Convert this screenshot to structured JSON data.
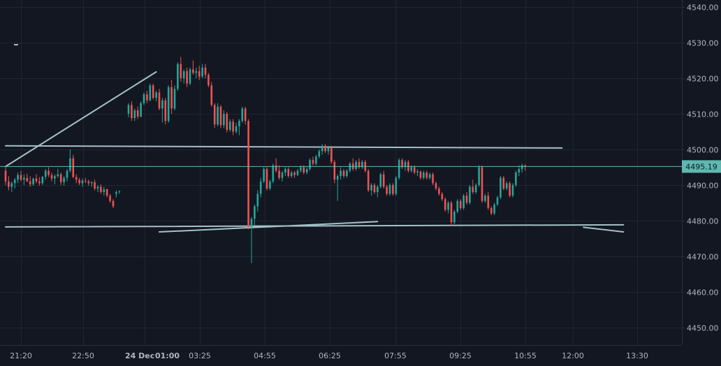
{
  "chart_data": {
    "type": "candlestick",
    "title": "",
    "xlabel": "",
    "ylabel": "",
    "ylim": [
      4445,
      4542
    ],
    "grid": true,
    "y_ticks": [
      4450,
      4460,
      4470,
      4480,
      4490,
      4500,
      4510,
      4520,
      4530,
      4540
    ],
    "y_tick_labels": [
      "4450.00",
      "4460.00",
      "4470.00",
      "4480.00",
      "4490.00",
      "4500.00",
      "4510.00",
      "4520.00",
      "4530.00",
      "4540.00"
    ],
    "x_tick_labels": [
      "21:20",
      "22:50",
      "24 Dec",
      "01:00",
      "03:25",
      "04:55",
      "06:25",
      "07:55",
      "09:25",
      "10:55",
      "12:00",
      "13:30"
    ],
    "last_price": 4495.19,
    "last_price_label": "4495.19",
    "colors": {
      "background": "#131722",
      "grid": "#1e2533",
      "up": "#26a69a",
      "down": "#ef5350",
      "drawing": "#a3c2c7",
      "text": "#b2b5be",
      "price_line": "#5fb8b0",
      "price_tag_bg": "#5fb8b0",
      "price_tag_text": "#0f1a1f"
    },
    "drawings": [
      {
        "kind": "trendline",
        "from": [
          0,
          4495.2
        ],
        "to": [
          49,
          4521.8
        ]
      },
      {
        "kind": "horizontal",
        "from": [
          0,
          4501.0
        ],
        "to": [
          181,
          4500.4
        ]
      },
      {
        "kind": "horizontal",
        "from": [
          0,
          4478.2
        ],
        "to": [
          201,
          4478.8
        ]
      },
      {
        "kind": "trendline",
        "from": [
          50,
          4476.8
        ],
        "to": [
          121,
          4479.7
        ]
      },
      {
        "kind": "trendline",
        "from": [
          188,
          4478.1
        ],
        "to": [
          201,
          4476.8
        ]
      }
    ],
    "series": [
      {
        "name": "",
        "ohlc": [
          [
            4494.0,
            4495.0,
            4490.0,
            4491.0
          ],
          [
            4491.0,
            4492.5,
            4488.5,
            4489.5
          ],
          [
            4489.5,
            4491.0,
            4488.0,
            4490.5
          ],
          [
            4490.5,
            4492.0,
            4489.0,
            4491.5
          ],
          [
            4491.5,
            4493.5,
            4490.5,
            4492.8
          ],
          [
            4492.8,
            4494.0,
            4491.0,
            4491.5
          ],
          [
            4491.5,
            4493.0,
            4490.0,
            4492.0
          ],
          [
            4492.0,
            4493.2,
            4490.8,
            4491.0
          ],
          [
            4491.0,
            4492.5,
            4489.5,
            4490.2
          ],
          [
            4490.2,
            4492.0,
            4489.8,
            4491.8
          ],
          [
            4491.8,
            4493.0,
            4490.5,
            4491.0
          ],
          [
            4491.0,
            4492.2,
            4489.8,
            4490.5
          ],
          [
            4490.5,
            4492.5,
            4490.0,
            4492.3
          ],
          [
            4492.3,
            4494.5,
            4491.5,
            4494.0
          ],
          [
            4494.0,
            4495.0,
            4492.2,
            4492.8
          ],
          [
            4492.8,
            4493.5,
            4491.0,
            4491.8
          ],
          [
            4491.8,
            4493.0,
            4490.2,
            4492.5
          ],
          [
            4492.5,
            4494.5,
            4492.0,
            4493.0
          ],
          [
            4493.0,
            4493.5,
            4490.0,
            4490.8
          ],
          [
            4490.8,
            4492.5,
            4489.8,
            4492.0
          ],
          [
            4492.0,
            4494.5,
            4491.0,
            4494.0
          ],
          [
            4494.0,
            4500.0,
            4493.5,
            4497.5
          ],
          [
            4497.5,
            4498.5,
            4492.0,
            4492.2
          ],
          [
            4492.2,
            4493.0,
            4490.5,
            4491.5
          ],
          [
            4491.5,
            4492.0,
            4490.0,
            4490.5
          ],
          [
            4490.5,
            4491.8,
            4489.5,
            4491.2
          ],
          [
            4491.2,
            4492.0,
            4490.5,
            4491.0
          ],
          [
            4491.0,
            4491.5,
            4489.8,
            4490.5
          ],
          [
            4490.5,
            4491.0,
            4489.5,
            4490.8
          ],
          [
            4490.8,
            4491.5,
            4488.5,
            4489.0
          ],
          [
            4489.0,
            4490.0,
            4488.0,
            4489.5
          ],
          [
            4489.5,
            4490.2,
            4487.5,
            4488.0
          ],
          [
            4488.0,
            4489.5,
            4487.0,
            4488.8
          ],
          [
            4488.8,
            4489.0,
            4486.5,
            4487.0
          ],
          [
            4487.0,
            4487.5,
            4485.0,
            4485.5
          ],
          [
            4485.5,
            4486.0,
            4483.5,
            4484.0
          ],
          [
            4487.5,
            4488.5,
            4486.5,
            4488.0
          ],
          [
            4488.0,
            4488.5,
            4487.5,
            4488.2
          ],
          null,
          null,
          [
            4510.0,
            4513.0,
            4509.0,
            4512.5
          ],
          [
            4512.5,
            4513.5,
            4508.0,
            4508.8
          ],
          [
            4508.8,
            4511.5,
            4508.0,
            4511.0
          ],
          [
            4511.0,
            4512.0,
            4508.5,
            4509.2
          ],
          [
            4509.2,
            4513.5,
            4509.0,
            4513.0
          ],
          [
            4513.0,
            4516.0,
            4512.5,
            4515.5
          ],
          [
            4515.5,
            4516.5,
            4513.0,
            4513.8
          ],
          [
            4513.8,
            4518.5,
            4513.5,
            4518.0
          ],
          [
            4518.0,
            4518.5,
            4514.0,
            4514.5
          ],
          [
            4514.5,
            4516.5,
            4513.5,
            4516.0
          ],
          [
            4516.0,
            4517.0,
            4511.0,
            4511.5
          ],
          [
            4511.5,
            4514.5,
            4507.5,
            4513.8
          ],
          [
            4513.8,
            4514.5,
            4507.0,
            4508.0
          ],
          [
            4508.0,
            4518.0,
            4507.5,
            4517.5
          ],
          [
            4517.5,
            4519.5,
            4510.0,
            4511.5
          ],
          [
            4511.5,
            4518.0,
            4511.0,
            4517.0
          ],
          [
            4517.0,
            4524.5,
            4516.5,
            4524.0
          ],
          [
            4524.0,
            4526.0,
            4519.0,
            4520.0
          ],
          [
            4520.0,
            4522.5,
            4518.5,
            4522.0
          ],
          [
            4522.0,
            4523.0,
            4517.5,
            4518.5
          ],
          [
            4518.5,
            4523.0,
            4518.0,
            4522.5
          ],
          [
            4522.5,
            4525.0,
            4521.0,
            4521.5
          ],
          [
            4521.5,
            4523.0,
            4520.0,
            4522.0
          ],
          [
            4522.0,
            4523.5,
            4519.5,
            4520.5
          ],
          [
            4520.5,
            4524.0,
            4520.0,
            4523.0
          ],
          [
            4523.0,
            4524.0,
            4520.0,
            4521.0
          ],
          [
            4521.0,
            4521.5,
            4517.5,
            4518.0
          ],
          [
            4518.0,
            4519.0,
            4512.0,
            4512.5
          ],
          [
            4512.5,
            4513.0,
            4506.0,
            4507.0
          ],
          [
            4507.0,
            4513.0,
            4506.5,
            4512.0
          ],
          [
            4512.0,
            4512.5,
            4506.0,
            4506.8
          ],
          [
            4506.8,
            4511.0,
            4506.0,
            4510.0
          ],
          [
            4510.0,
            4510.5,
            4504.8,
            4505.5
          ],
          [
            4505.5,
            4508.5,
            4505.0,
            4507.8
          ],
          [
            4507.8,
            4508.5,
            4504.0,
            4505.0
          ],
          [
            4505.0,
            4507.5,
            4504.5,
            4506.5
          ],
          [
            4506.5,
            4508.5,
            4504.0,
            4508.0
          ],
          [
            4508.0,
            4512.0,
            4507.5,
            4511.5
          ],
          [
            4511.5,
            4512.0,
            4507.0,
            4508.0
          ],
          [
            4508.0,
            4508.5,
            4477.5,
            4478.2
          ],
          [
            4478.2,
            4481.0,
            4468.0,
            4480.5
          ],
          [
            4480.5,
            4484.5,
            4478.5,
            4484.0
          ],
          [
            4484.0,
            4488.5,
            4482.5,
            4487.5
          ],
          [
            4487.5,
            4492.0,
            4486.5,
            4491.0
          ],
          [
            4491.0,
            4495.0,
            4490.5,
            4494.5
          ],
          [
            4494.5,
            4495.0,
            4488.5,
            4489.0
          ],
          [
            4489.0,
            4491.5,
            4488.5,
            4491.0
          ],
          [
            4491.0,
            4496.0,
            4490.5,
            4495.5
          ],
          [
            4495.5,
            4497.5,
            4493.5,
            4494.0
          ],
          [
            4494.0,
            4495.5,
            4491.5,
            4492.0
          ],
          [
            4492.0,
            4494.0,
            4491.0,
            4493.5
          ],
          [
            4493.5,
            4495.0,
            4492.5,
            4494.5
          ],
          [
            4494.5,
            4495.0,
            4492.0,
            4492.5
          ],
          [
            4492.5,
            4494.0,
            4492.0,
            4493.5
          ],
          [
            4493.5,
            4494.0,
            4492.0,
            4492.8
          ],
          [
            4492.8,
            4494.5,
            4492.5,
            4494.0
          ],
          [
            4494.0,
            4495.5,
            4493.5,
            4495.0
          ],
          [
            4495.0,
            4495.5,
            4493.0,
            4493.5
          ],
          [
            4493.5,
            4495.0,
            4493.0,
            4494.5
          ],
          [
            4494.5,
            4497.5,
            4494.0,
            4497.0
          ],
          [
            4497.0,
            4498.0,
            4495.5,
            4496.0
          ],
          [
            4496.0,
            4498.5,
            4495.5,
            4498.0
          ],
          [
            4498.0,
            4500.0,
            4497.5,
            4499.5
          ],
          [
            4499.5,
            4501.5,
            4498.5,
            4501.0
          ],
          [
            4501.0,
            4501.5,
            4499.0,
            4499.5
          ],
          [
            4499.5,
            4501.0,
            4498.5,
            4500.5
          ],
          [
            4500.5,
            4501.0,
            4496.0,
            4496.5
          ],
          [
            4496.5,
            4497.0,
            4490.5,
            4491.5
          ],
          [
            4491.5,
            4493.0,
            4485.5,
            4492.5
          ],
          [
            4492.5,
            4495.0,
            4491.5,
            4494.0
          ],
          [
            4494.0,
            4494.5,
            4492.0,
            4492.5
          ],
          [
            4492.5,
            4494.5,
            4492.0,
            4494.0
          ],
          [
            4494.0,
            4496.5,
            4493.5,
            4496.0
          ],
          [
            4496.0,
            4497.5,
            4494.0,
            4494.5
          ],
          [
            4494.5,
            4497.0,
            4494.0,
            4496.5
          ],
          [
            4496.5,
            4497.5,
            4494.5,
            4495.0
          ],
          [
            4495.0,
            4497.0,
            4494.5,
            4496.5
          ],
          [
            4496.5,
            4497.0,
            4493.5,
            4494.0
          ],
          [
            4494.0,
            4494.5,
            4488.0,
            4488.5
          ],
          [
            4488.5,
            4490.5,
            4487.0,
            4490.0
          ],
          [
            4490.0,
            4490.5,
            4487.5,
            4488.0
          ],
          [
            4488.0,
            4490.0,
            4486.5,
            4489.5
          ],
          [
            4489.5,
            4493.5,
            4489.0,
            4493.0
          ],
          [
            4493.0,
            4494.0,
            4489.0,
            4489.5
          ],
          [
            4489.5,
            4490.0,
            4487.0,
            4487.5
          ],
          [
            4487.5,
            4490.5,
            4487.0,
            4490.0
          ],
          [
            4490.0,
            4490.5,
            4487.0,
            4487.5
          ],
          [
            4487.5,
            4492.5,
            4487.0,
            4492.0
          ],
          [
            4492.0,
            4497.5,
            4491.5,
            4497.0
          ],
          [
            4497.0,
            4497.5,
            4494.5,
            4495.0
          ],
          [
            4495.0,
            4497.0,
            4494.0,
            4496.5
          ],
          [
            4496.5,
            4497.0,
            4493.5,
            4494.0
          ],
          [
            4494.0,
            4495.5,
            4493.5,
            4495.0
          ],
          [
            4495.0,
            4495.5,
            4493.0,
            4493.5
          ],
          [
            4493.5,
            4494.5,
            4492.5,
            4493.8
          ],
          [
            4493.8,
            4494.0,
            4491.5,
            4492.0
          ],
          [
            4492.0,
            4494.0,
            4491.5,
            4493.5
          ],
          [
            4493.5,
            4494.0,
            4491.5,
            4492.0
          ],
          [
            4492.0,
            4493.5,
            4491.5,
            4493.0
          ],
          [
            4493.0,
            4493.5,
            4490.0,
            4490.5
          ],
          [
            4490.5,
            4491.0,
            4488.5,
            4489.0
          ],
          [
            4489.0,
            4489.5,
            4487.0,
            4487.5
          ],
          [
            4487.5,
            4488.0,
            4485.5,
            4486.0
          ],
          [
            4486.0,
            4486.5,
            4482.5,
            4483.0
          ],
          [
            4483.0,
            4485.5,
            4482.0,
            4485.0
          ],
          [
            4485.0,
            4485.5,
            4478.5,
            4479.5
          ],
          [
            4479.5,
            4483.0,
            4479.0,
            4482.5
          ],
          [
            4482.5,
            4486.0,
            4482.0,
            4485.5
          ],
          [
            4485.5,
            4486.0,
            4483.0,
            4483.5
          ],
          [
            4483.5,
            4487.5,
            4483.0,
            4487.0
          ],
          [
            4487.0,
            4488.0,
            4484.5,
            4485.0
          ],
          [
            4485.0,
            4490.0,
            4484.5,
            4489.5
          ],
          [
            4489.5,
            4491.5,
            4487.5,
            4488.0
          ],
          [
            4488.0,
            4490.5,
            4487.5,
            4490.0
          ],
          [
            4490.0,
            4495.5,
            4489.5,
            4495.0
          ],
          [
            4495.0,
            4495.5,
            4485.0,
            4485.5
          ],
          [
            4485.5,
            4487.5,
            4485.0,
            4487.0
          ],
          [
            4487.0,
            4488.0,
            4483.0,
            4483.5
          ],
          [
            4483.5,
            4484.0,
            4481.5,
            4482.0
          ],
          [
            4482.0,
            4485.0,
            4481.5,
            4484.5
          ],
          [
            4484.5,
            4487.0,
            4484.0,
            4486.5
          ],
          [
            4486.5,
            4492.5,
            4486.0,
            4492.0
          ],
          [
            4492.0,
            4492.5,
            4488.5,
            4489.0
          ],
          [
            4489.0,
            4491.0,
            4488.5,
            4490.5
          ],
          [
            4490.5,
            4491.0,
            4486.5,
            4487.0
          ],
          [
            4487.0,
            4490.5,
            4486.5,
            4490.0
          ],
          [
            4490.0,
            4494.0,
            4489.5,
            4493.5
          ],
          [
            4493.5,
            4495.5,
            4492.5,
            4494.5
          ],
          [
            4494.5,
            4496.0,
            4493.5,
            4495.5
          ],
          [
            4495.5,
            4495.8,
            4494.0,
            4495.19
          ]
        ]
      }
    ]
  }
}
